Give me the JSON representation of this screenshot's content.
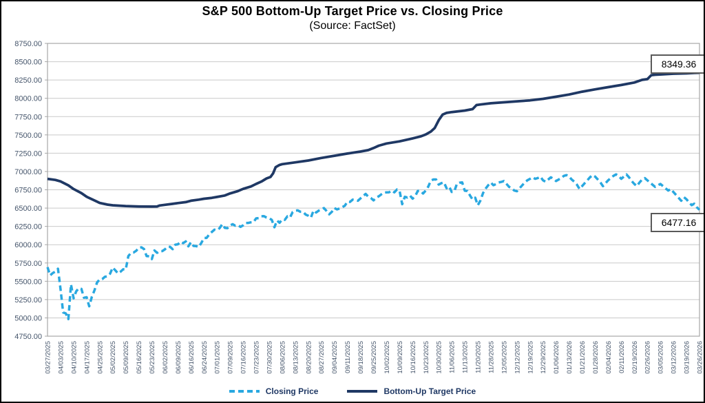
{
  "header": {
    "title": "S&P 500 Bottom-Up Target Price vs. Closing Price",
    "subtitle": "(Source: FactSet)"
  },
  "annotations": {
    "target_end_label": "8349.36",
    "closing_end_label": "6477.16"
  },
  "legend": {
    "closing_label": "Closing Price",
    "target_label": "Bottom-Up Target Price"
  },
  "colors": {
    "closing_line": "#29a8e0",
    "target_line": "#1f3864",
    "grid": "#c9c9c9",
    "plot_border": "#a6a6a6",
    "axis_text": "#44546a",
    "annotation_border": "#595959"
  },
  "chart_data": {
    "type": "line",
    "title": "S&P 500 Bottom-Up Target Price vs. Closing Price",
    "subtitle": "(Source: FactSet)",
    "grid": true,
    "legend_position": "bottom",
    "ylim": [
      4750,
      8750
    ],
    "y_step": 250,
    "y_tick_labels": [
      "8750.00",
      "8500.00",
      "8250.00",
      "8000.00",
      "7750.00",
      "7500.00",
      "7250.00",
      "7000.00",
      "6750.00",
      "6500.00",
      "6250.00",
      "6000.00",
      "5750.00",
      "5500.00",
      "5250.00",
      "5000.00",
      "4750.00"
    ],
    "x_tick_labels": [
      "03/27/2025",
      "04/03/2025",
      "04/10/2025",
      "04/17/2025",
      "04/25/2025",
      "05/02/2025",
      "05/09/2025",
      "05/16/2025",
      "05/23/2025",
      "06/02/2025",
      "06/09/2025",
      "06/16/2025",
      "06/24/2025",
      "07/01/2025",
      "07/09/2025",
      "07/16/2025",
      "07/23/2025",
      "07/30/2025",
      "08/06/2025",
      "08/13/2025",
      "08/20/2025",
      "08/27/2025",
      "09/04/2025",
      "09/11/2025",
      "09/18/2025",
      "09/25/2025",
      "10/02/2025",
      "10/09/2025",
      "10/16/2025",
      "10/23/2025",
      "10/30/2025",
      "11/06/2025",
      "11/13/2025",
      "11/20/2025",
      "11/28/2025",
      "12/05/2025",
      "12/12/2025",
      "12/19/2025",
      "12/29/2025",
      "01/06/2026",
      "01/13/2026",
      "01/21/2026",
      "01/28/2026",
      "02/04/2026",
      "02/11/2026",
      "02/19/2026",
      "02/26/2026",
      "03/05/2026",
      "03/12/2026",
      "03/19/2026",
      "03/26/2026"
    ],
    "x_range_ticks": [
      0,
      50
    ],
    "series": [
      {
        "name": "Closing Price",
        "style": "dashed",
        "color": "#29a8e0",
        "sampling": "daily-uniform",
        "end_value": 6477.16,
        "values": [
          5693,
          5581,
          5612,
          5633,
          5671,
          5396,
          5074,
          5062,
          4983,
          5457,
          5268,
          5363,
          5406,
          5397,
          5275,
          5283,
          5158,
          5288,
          5376,
          5485,
          5525,
          5529,
          5561,
          5569,
          5604,
          5687,
          5650,
          5607,
          5631,
          5664,
          5660,
          5844,
          5887,
          5893,
          5916,
          5958,
          5964,
          5941,
          5845,
          5842,
          5803,
          5922,
          5889,
          5912,
          5912,
          5936,
          5970,
          5971,
          5939,
          6000,
          6006,
          6039,
          6022,
          6045,
          5977,
          6033,
          5983,
          5981,
          5968,
          6025,
          6092,
          6092,
          6141,
          6173,
          6205,
          6198,
          6227,
          6279,
          6230,
          6226,
          6263,
          6280,
          6260,
          6268,
          6244,
          6264,
          6297,
          6297,
          6306,
          6310,
          6359,
          6363,
          6389,
          6390,
          6371,
          6363,
          6339,
          6238,
          6330,
          6299,
          6345,
          6340,
          6389,
          6373,
          6446,
          6466,
          6469,
          6450,
          6449,
          6411,
          6395,
          6370,
          6467,
          6439,
          6466,
          6481,
          6501,
          6460,
          6415,
          6448,
          6502,
          6482,
          6495,
          6513,
          6532,
          6587,
          6584,
          6615,
          6607,
          6600,
          6632,
          6664,
          6694,
          6656,
          6638,
          6605,
          6644,
          6661,
          6688,
          6711,
          6715,
          6716,
          6740,
          6715,
          6754,
          6735,
          6553,
          6654,
          6645,
          6671,
          6629,
          6664,
          6735,
          6736,
          6699,
          6739,
          6792,
          6875,
          6891,
          6891,
          6822,
          6840,
          6852,
          6772,
          6796,
          6720,
          6729,
          6833,
          6847,
          6851,
          6737,
          6734,
          6672,
          6617,
          6642,
          6539,
          6603,
          6705,
          6766,
          6813,
          6849,
          6812,
          6829,
          6850,
          6857,
          6870,
          6830,
          6790,
          6770,
          6740,
          6730,
          6770,
          6810,
          6850,
          6880,
          6900,
          6920,
          6900,
          6910,
          6930,
          6880,
          6860,
          6890,
          6920,
          6900,
          6870,
          6890,
          6910,
          6940,
          6950,
          6930,
          6890,
          6860,
          6820,
          6760,
          6800,
          6840,
          6880,
          6920,
          6950,
          6930,
          6890,
          6850,
          6800,
          6840,
          6880,
          6910,
          6940,
          6960,
          6940,
          6900,
          6930,
          6960,
          6920,
          6870,
          6830,
          6800,
          6850,
          6890,
          6910,
          6880,
          6850,
          6820,
          6790,
          6810,
          6830,
          6800,
          6770,
          6740,
          6760,
          6720,
          6680,
          6640,
          6600,
          6650,
          6620,
          6580,
          6540,
          6560,
          6510,
          6477.16
        ]
      },
      {
        "name": "Bottom-Up Target Price",
        "style": "solid",
        "color": "#1f3864",
        "end_value": 8349.36,
        "points": [
          [
            0,
            6900
          ],
          [
            0.6,
            6885
          ],
          [
            1,
            6865
          ],
          [
            1.6,
            6810
          ],
          [
            2,
            6760
          ],
          [
            2.6,
            6705
          ],
          [
            3,
            6655
          ],
          [
            3.6,
            6605
          ],
          [
            4,
            6570
          ],
          [
            4.6,
            6548
          ],
          [
            5,
            6538
          ],
          [
            6,
            6528
          ],
          [
            7,
            6522
          ],
          [
            8,
            6520
          ],
          [
            8.4,
            6522
          ],
          [
            8.6,
            6535
          ],
          [
            9,
            6545
          ],
          [
            9.6,
            6558
          ],
          [
            10,
            6568
          ],
          [
            10.6,
            6582
          ],
          [
            11,
            6600
          ],
          [
            11.6,
            6615
          ],
          [
            12,
            6628
          ],
          [
            12.6,
            6640
          ],
          [
            13,
            6652
          ],
          [
            13.6,
            6672
          ],
          [
            14,
            6700
          ],
          [
            14.6,
            6732
          ],
          [
            15,
            6762
          ],
          [
            15.6,
            6795
          ],
          [
            16,
            6830
          ],
          [
            16.4,
            6862
          ],
          [
            16.8,
            6905
          ],
          [
            17.1,
            6925
          ],
          [
            17.3,
            6975
          ],
          [
            17.5,
            7060
          ],
          [
            17.8,
            7090
          ],
          [
            18,
            7100
          ],
          [
            19,
            7125
          ],
          [
            20,
            7150
          ],
          [
            21,
            7185
          ],
          [
            22,
            7215
          ],
          [
            23,
            7245
          ],
          [
            24,
            7272
          ],
          [
            24.6,
            7292
          ],
          [
            25,
            7320
          ],
          [
            25.4,
            7352
          ],
          [
            26,
            7382
          ],
          [
            27,
            7412
          ],
          [
            28,
            7452
          ],
          [
            28.6,
            7478
          ],
          [
            29,
            7505
          ],
          [
            29.4,
            7545
          ],
          [
            29.7,
            7595
          ],
          [
            30,
            7700
          ],
          [
            30.3,
            7778
          ],
          [
            30.6,
            7800
          ],
          [
            31,
            7812
          ],
          [
            32,
            7832
          ],
          [
            32.6,
            7852
          ],
          [
            32.9,
            7908
          ],
          [
            33.2,
            7915
          ],
          [
            34,
            7932
          ],
          [
            35,
            7945
          ],
          [
            36,
            7958
          ],
          [
            37,
            7972
          ],
          [
            38,
            7992
          ],
          [
            39,
            8022
          ],
          [
            40,
            8052
          ],
          [
            41,
            8090
          ],
          [
            42,
            8122
          ],
          [
            43,
            8152
          ],
          [
            44,
            8182
          ],
          [
            45,
            8215
          ],
          [
            45.6,
            8252
          ],
          [
            46,
            8262
          ],
          [
            46.3,
            8315
          ],
          [
            46.6,
            8322
          ],
          [
            47,
            8326
          ],
          [
            48,
            8336
          ],
          [
            49,
            8341
          ],
          [
            49.6,
            8346
          ],
          [
            50,
            8349.36
          ]
        ]
      }
    ]
  }
}
